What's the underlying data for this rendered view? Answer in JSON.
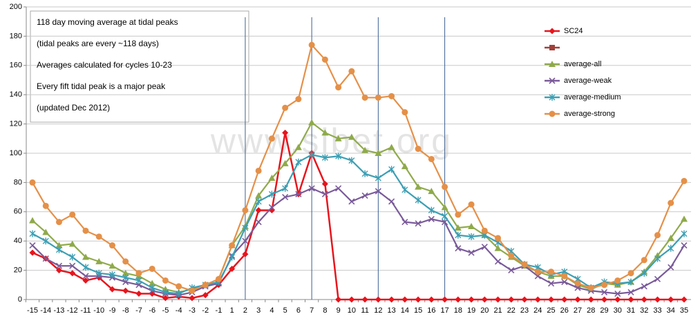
{
  "chart_data": {
    "type": "line",
    "note_lines": [
      "118 day moving average at tidal peaks",
      "(tidal peaks are every ~118 days)",
      "Averages calculated for cycles 10-23",
      "Every fift tidal peak is  a major peak",
      "(updated Dec 2012)"
    ],
    "watermark": "www.sibet.org",
    "categories": [
      "-15",
      "-14",
      "-13",
      "-12",
      "-11",
      "-10",
      "-9",
      "-8",
      "-7",
      "-6",
      "-5",
      "-4",
      "-3",
      "-2",
      "-1",
      "1",
      "2",
      "3",
      "4",
      "5",
      "6",
      "7",
      "8",
      "9",
      "10",
      "11",
      "12",
      "13",
      "14",
      "15",
      "16",
      "17",
      "18",
      "19",
      "20",
      "21",
      "22",
      "23",
      "24",
      "25",
      "26",
      "27",
      "28",
      "29",
      "30",
      "31",
      "32",
      "33",
      "34",
      "35"
    ],
    "vertical_lines": [
      "2",
      "7",
      "12",
      "17"
    ],
    "ylim": [
      0,
      200
    ],
    "yticks": [
      0,
      20,
      40,
      60,
      80,
      100,
      120,
      140,
      160,
      180,
      200
    ],
    "grid": true,
    "legend": "right",
    "series": [
      {
        "name": "SC24",
        "color": "#e8141c",
        "marker": "diamond",
        "values": [
          32,
          28,
          20,
          18,
          13,
          15,
          7,
          6,
          4,
          4,
          1,
          2,
          1,
          3,
          10,
          21,
          31,
          61,
          61,
          114,
          72,
          100,
          79,
          0,
          0,
          0,
          0,
          0,
          0,
          0,
          0,
          0,
          0,
          0,
          0,
          0,
          0,
          0,
          0,
          0,
          0,
          0,
          0,
          0,
          0,
          0,
          0,
          0,
          0,
          0
        ]
      },
      {
        "name": "average-all",
        "color": "#8faa4a",
        "marker": "triangle",
        "values": [
          54,
          46,
          37,
          38,
          29,
          26,
          23,
          18,
          16,
          11,
          7,
          5,
          7,
          10,
          14,
          37,
          50,
          71,
          83,
          93,
          104,
          121,
          114,
          110,
          111,
          102,
          100,
          104,
          91,
          77,
          74,
          63,
          49,
          50,
          44,
          35,
          29,
          23,
          19,
          16,
          16,
          10,
          7,
          11,
          10,
          12,
          19,
          30,
          42,
          55
        ]
      },
      {
        "name": "average-weak",
        "color": "#7a5a9a",
        "marker": "x",
        "values": [
          37,
          28,
          23,
          23,
          16,
          16,
          15,
          12,
          10,
          6,
          4,
          3,
          5,
          9,
          11,
          30,
          40,
          53,
          63,
          70,
          72,
          76,
          72,
          76,
          67,
          71,
          74,
          67,
          53,
          52,
          55,
          53,
          35,
          32,
          36,
          26,
          20,
          23,
          16,
          11,
          12,
          8,
          6,
          5,
          4,
          5,
          9,
          14,
          22,
          37
        ]
      },
      {
        "name": "average-medium",
        "color": "#3c9fb4",
        "marker": "star",
        "values": [
          45,
          40,
          34,
          29,
          22,
          18,
          17,
          15,
          13,
          8,
          5,
          4,
          8,
          10,
          12,
          29,
          49,
          67,
          72,
          76,
          94,
          99,
          97,
          98,
          95,
          86,
          83,
          89,
          75,
          68,
          61,
          57,
          44,
          43,
          44,
          39,
          33,
          24,
          22,
          17,
          19,
          14,
          8,
          12,
          11,
          12,
          18,
          28,
          35,
          45
        ]
      },
      {
        "name": "average-strong",
        "color": "#e59048",
        "marker": "circle",
        "values": [
          80,
          64,
          53,
          58,
          47,
          43,
          37,
          26,
          18,
          21,
          13,
          9,
          6,
          10,
          14,
          37,
          61,
          88,
          110,
          131,
          137,
          174,
          164,
          145,
          156,
          138,
          138,
          139,
          128,
          103,
          96,
          77,
          58,
          65,
          47,
          42,
          30,
          24,
          19,
          19,
          16,
          11,
          8,
          10,
          13,
          18,
          27,
          44,
          66,
          81
        ]
      }
    ]
  }
}
